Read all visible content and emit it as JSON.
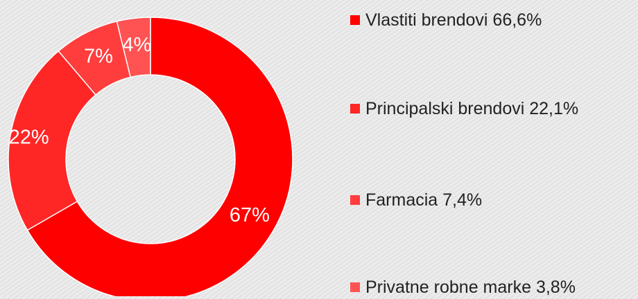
{
  "chart_data": {
    "type": "pie",
    "categories": [
      "Vlastiti brendovi 66,6%",
      "Principalski brendovi 22,1%",
      "Farmacia 7,4%",
      "Privatne robne marke 3,8%"
    ],
    "values": [
      66.6,
      22.1,
      7.4,
      3.8
    ],
    "value_labels": [
      "67%",
      "22%",
      "7%",
      "4%"
    ],
    "colors": [
      "#ff0000",
      "#ff2626",
      "#ff3d3d",
      "#ff5252"
    ]
  }
}
